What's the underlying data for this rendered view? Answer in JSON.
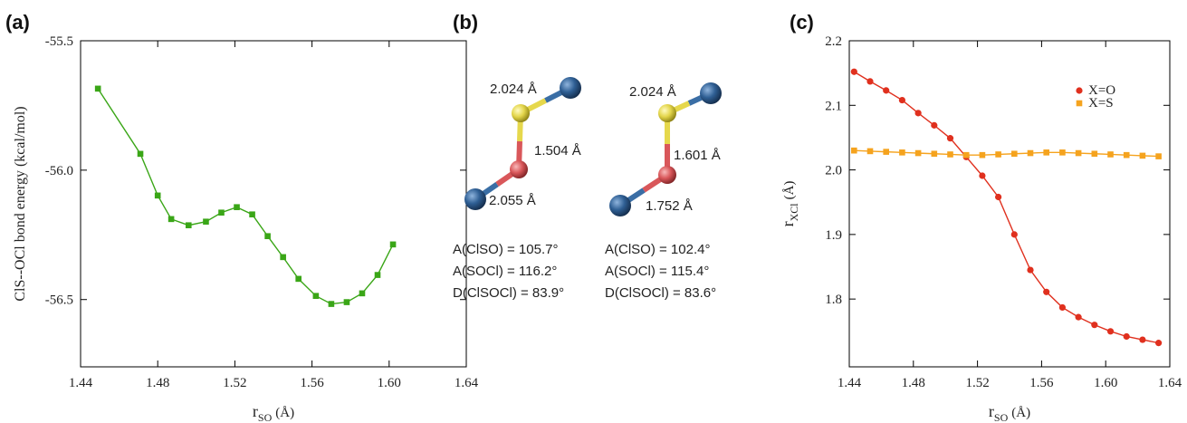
{
  "chart_data": [
    {
      "type": "line",
      "panel_label": "(a)",
      "y_label": "ClS--OCl bond energy (kcal/mol)",
      "x_label": "r",
      "x_label_sub": "SO",
      "x_label_unit": "(Å)",
      "xlim": [
        1.44,
        1.64
      ],
      "xticks": [
        1.44,
        1.48,
        1.52,
        1.56,
        {
          "value": 1.6,
          "label": "1.60"
        },
        1.64
      ],
      "ylim": [
        -56.76,
        -55.5
      ],
      "yticks": [
        -56.5,
        {
          "value": -56,
          "label": "-56.0"
        },
        -55.5
      ],
      "x": [
        1.449,
        1.471,
        1.48,
        1.487,
        1.496,
        1.505,
        1.513,
        1.521,
        1.529,
        1.537,
        1.545,
        1.553,
        1.562,
        1.57,
        1.578,
        1.586,
        1.594,
        1.602
      ],
      "series": [
        {
          "color": "#3aa617",
          "marker": "square",
          "values": [
            -55.685,
            -55.937,
            -56.098,
            -56.189,
            -56.213,
            -56.199,
            -56.164,
            -56.143,
            -56.171,
            -56.255,
            -56.336,
            -56.42,
            -56.486,
            -56.517,
            -56.51,
            -56.476,
            -56.405,
            -56.287
          ]
        }
      ]
    },
    {
      "type": "line",
      "panel_label": "(c)",
      "y_label": "r",
      "y_label_sub": "XCl",
      "y_label_unit": "(Å)",
      "x_label": "r",
      "x_label_sub": "SO",
      "x_label_unit": "(Å)",
      "xlim": [
        1.44,
        1.64
      ],
      "xticks": [
        1.44,
        1.48,
        1.52,
        1.56,
        {
          "value": 1.6,
          "label": "1.60"
        },
        1.64
      ],
      "ylim": [
        1.695,
        2.2
      ],
      "yticks": [
        1.8,
        1.9,
        {
          "value": 2,
          "label": "2.0"
        },
        2.1,
        2.2
      ],
      "legend": "upper right",
      "x": [
        1.443,
        1.453,
        1.463,
        1.473,
        1.483,
        1.493,
        1.503,
        1.513,
        1.523,
        1.533,
        1.543,
        1.553,
        1.563,
        1.573,
        1.583,
        1.593,
        1.603,
        1.613,
        1.623,
        1.633
      ],
      "series": [
        {
          "name": "X=O",
          "color": "#e0301e",
          "marker": "circle",
          "values": [
            2.152,
            2.137,
            2.123,
            2.108,
            2.088,
            2.069,
            2.049,
            2.02,
            1.991,
            1.958,
            1.9,
            1.845,
            1.811,
            1.787,
            1.772,
            1.76,
            1.75,
            1.742,
            1.737,
            1.732
          ]
        },
        {
          "name": "X=S",
          "color": "#f5a31e",
          "marker": "square",
          "values": [
            2.03,
            2.029,
            2.028,
            2.027,
            2.026,
            2.025,
            2.024,
            2.023,
            2.023,
            2.024,
            2.025,
            2.026,
            2.027,
            2.027,
            2.026,
            2.025,
            2.024,
            2.023,
            2.022,
            2.021
          ]
        }
      ]
    }
  ],
  "diagram": {
    "panel_label": "(b)",
    "structures": [
      {
        "bond_labels": [
          "2.024 Å",
          "1.504 Å",
          "2.055 Å"
        ],
        "geometry": [
          "A(ClSO) = 105.7°",
          "A(SOCl) = 116.2°",
          "D(ClSOCl) = 83.9°"
        ]
      },
      {
        "bond_labels": [
          "2.024 Å",
          "1.601 Å",
          "1.752 Å"
        ],
        "geometry": [
          "A(ClSO) = 102.4°",
          "A(SOCl) = 115.4°",
          "D(ClSOCl) = 83.6°"
        ]
      }
    ]
  }
}
